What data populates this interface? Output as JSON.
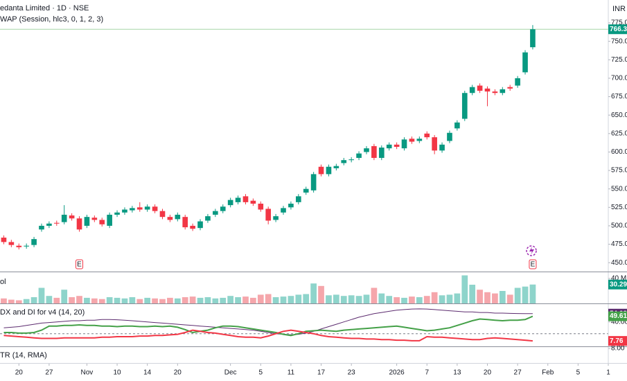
{
  "chart_data": [
    {
      "type": "candlestick",
      "title": "edanta Limited · 1D · NSE",
      "subtitle": "WAP (Session, hlc3, 0, 1, 2, 3)",
      "unit": "INR",
      "up_color": "#089981",
      "down_color": "#f23645",
      "xlim": [
        -0.5,
        80
      ],
      "ylim": [
        438,
        806
      ],
      "yticks": [
        {
          "value": 450,
          "label": "450.00"
        },
        {
          "value": 475,
          "label": "475.00"
        },
        {
          "value": 500,
          "label": "500.00"
        },
        {
          "value": 525,
          "label": "525.00"
        },
        {
          "value": 550,
          "label": "550.00"
        },
        {
          "value": 575,
          "label": "575.00"
        },
        {
          "value": 600,
          "label": "600.00"
        },
        {
          "value": 625,
          "label": "625.00"
        },
        {
          "value": 650,
          "label": "650.00"
        },
        {
          "value": 675,
          "label": "675.00"
        },
        {
          "value": 700,
          "label": "700.00"
        },
        {
          "value": 725,
          "label": "725.00"
        },
        {
          "value": 750,
          "label": "750.00"
        },
        {
          "value": 775,
          "label": "775.00"
        }
      ],
      "xticks": [
        {
          "value": 2,
          "label": "20"
        },
        {
          "value": 6,
          "label": "27"
        },
        {
          "value": 11,
          "label": "Nov"
        },
        {
          "value": 15,
          "label": "10"
        },
        {
          "value": 19,
          "label": "14"
        },
        {
          "value": 23,
          "label": "20"
        },
        {
          "value": 30,
          "label": "Dec"
        },
        {
          "value": 34,
          "label": "5"
        },
        {
          "value": 38,
          "label": "11"
        },
        {
          "value": 42,
          "label": "17"
        },
        {
          "value": 46,
          "label": "23"
        },
        {
          "value": 52,
          "label": "2026"
        },
        {
          "value": 56,
          "label": "7"
        },
        {
          "value": 60,
          "label": "13"
        },
        {
          "value": 64,
          "label": "20"
        },
        {
          "value": 68,
          "label": "27"
        },
        {
          "value": 72,
          "label": "Feb"
        },
        {
          "value": 76,
          "label": "5"
        },
        {
          "value": 80,
          "label": "1"
        }
      ],
      "annotations": [
        {
          "x": 10,
          "text": "E"
        },
        {
          "x": 70,
          "text": "E"
        }
      ],
      "open": [
        484,
        478,
        473,
        472,
        474,
        495,
        500,
        504,
        505,
        514,
        510,
        500,
        511,
        508,
        500,
        515,
        518,
        521,
        525,
        522,
        526,
        520,
        512,
        509,
        512,
        500,
        497,
        507,
        515,
        520,
        528,
        532,
        540,
        534,
        530,
        523,
        508,
        518,
        525,
        532,
        545,
        548,
        580,
        570,
        578,
        585,
        589,
        592,
        600,
        608,
        592,
        605,
        610,
        605,
        618,
        615,
        625,
        620,
        602,
        615,
        632,
        645,
        680,
        690,
        686,
        682,
        680,
        688,
        690,
        708,
        742
      ],
      "high": [
        487,
        481,
        476,
        476,
        485,
        503,
        506,
        507,
        528,
        517,
        513,
        515,
        514,
        511,
        518,
        521,
        525,
        527,
        532,
        529,
        529,
        523,
        515,
        518,
        515,
        503,
        509,
        516,
        523,
        529,
        538,
        541,
        543,
        537,
        533,
        526,
        516,
        527,
        533,
        543,
        553,
        573,
        583,
        583,
        584,
        592,
        593,
        601,
        608,
        611,
        609,
        613,
        613,
        620,
        621,
        621,
        628,
        623,
        613,
        629,
        643,
        683,
        691,
        693,
        689,
        685,
        688,
        691,
        703,
        738,
        772
      ],
      "low": [
        475,
        471,
        468,
        469,
        471,
        492,
        497,
        500,
        502,
        507,
        492,
        497,
        505,
        499,
        497,
        512,
        515,
        518,
        519,
        519,
        517,
        509,
        505,
        506,
        495,
        493,
        494,
        504,
        512,
        517,
        525,
        529,
        529,
        527,
        519,
        502,
        505,
        515,
        522,
        529,
        542,
        545,
        567,
        567,
        575,
        582,
        586,
        589,
        597,
        589,
        589,
        602,
        604,
        602,
        611,
        612,
        617,
        597,
        599,
        612,
        629,
        642,
        677,
        680,
        662,
        677,
        677,
        683,
        687,
        705,
        739
      ],
      "close": [
        478,
        474,
        471,
        473,
        482,
        500,
        503,
        503,
        515,
        510,
        495,
        512,
        508,
        502,
        515,
        518,
        522,
        524,
        522,
        526,
        520,
        512,
        508,
        515,
        498,
        496,
        506,
        513,
        520,
        526,
        535,
        538,
        532,
        530,
        522,
        507,
        513,
        524,
        530,
        540,
        550,
        570,
        570,
        580,
        581,
        589,
        590,
        598,
        605,
        592,
        606,
        610,
        607,
        617,
        614,
        618,
        620,
        602,
        610,
        626,
        640,
        680,
        688,
        683,
        682,
        680,
        685,
        686,
        700,
        735,
        766.35
      ]
    },
    {
      "type": "bar",
      "title": "ol",
      "up_color": "#8ed4cb",
      "down_color": "#f5a6ab",
      "badge_color": "#089981",
      "ylim": [
        0,
        50
      ],
      "yticks": [
        {
          "value": 40,
          "label": "40 M"
        }
      ],
      "values": [
        8,
        6,
        5,
        7,
        10,
        25,
        12,
        9,
        22,
        10,
        12,
        9,
        8,
        7,
        10,
        9,
        8,
        10,
        7,
        9,
        8,
        7,
        9,
        8,
        10,
        11,
        9,
        10,
        8,
        9,
        12,
        10,
        11,
        9,
        14,
        15,
        10,
        11,
        12,
        14,
        15,
        32,
        28,
        13,
        14,
        12,
        13,
        12,
        14,
        25,
        16,
        12,
        10,
        9,
        11,
        10,
        12,
        18,
        13,
        14,
        16,
        45,
        30,
        22,
        18,
        16,
        20,
        14,
        25,
        27,
        30.29
      ],
      "value_labels": [
        null,
        null,
        null,
        null,
        null,
        null,
        null,
        null,
        null,
        null,
        null,
        null,
        null,
        null,
        null,
        null,
        null,
        null,
        null,
        null,
        null,
        null,
        null,
        null,
        null,
        null,
        null,
        null,
        null,
        null,
        null,
        null,
        null,
        null,
        null,
        null,
        null,
        null,
        null,
        null,
        null,
        null,
        null,
        null,
        null,
        null,
        null,
        null,
        null,
        null,
        null,
        null,
        null,
        null,
        null,
        null,
        null,
        null,
        null,
        null,
        null,
        null,
        null,
        null,
        null,
        null,
        null,
        null,
        null,
        null,
        "30.29M"
      ]
    },
    {
      "type": "line",
      "title": "DX and DI for v4 (14, 20)",
      "ylim": [
        -1.5,
        70.3
      ],
      "yticks": [
        {
          "value": 40,
          "label": "40.00"
        }
      ],
      "hline": 20,
      "series": [
        {
          "color": "#5b2a6e",
          "values": [
            30,
            31,
            32,
            34,
            36,
            38,
            39,
            40,
            41,
            42,
            42,
            43,
            43,
            44,
            44,
            43.7,
            43,
            42,
            41,
            40,
            39,
            38,
            37,
            36,
            35,
            34,
            33,
            32,
            31,
            30,
            29,
            28,
            27,
            26,
            24,
            22,
            20,
            19,
            18.2,
            19,
            21,
            24,
            28,
            32,
            36,
            40,
            44,
            48,
            51,
            54,
            56,
            58,
            60,
            61,
            62,
            62.2,
            62,
            61,
            60,
            59,
            58,
            57,
            57,
            56,
            56,
            55,
            55,
            54.5,
            54.3,
            54.1,
            54.09
          ]
        },
        {
          "color": "#43a047",
          "values": [
            22,
            22,
            21,
            21,
            22,
            26,
            33,
            33,
            34,
            34,
            35,
            34,
            34,
            33,
            33,
            32,
            33,
            33,
            32,
            32,
            33,
            32,
            33,
            31,
            27,
            22,
            24,
            26,
            30,
            33,
            33,
            32,
            30,
            28,
            26,
            24,
            22,
            19,
            17,
            20,
            24,
            25,
            26,
            25,
            24,
            26,
            27,
            28,
            29,
            30,
            31,
            32,
            33,
            31,
            29,
            27,
            25,
            26,
            28,
            30,
            34,
            38,
            42,
            45,
            44,
            43,
            42,
            43,
            43,
            44,
            49.61
          ]
        },
        {
          "color": "#f23645",
          "values": [
            17,
            16,
            15,
            14,
            13,
            12,
            12,
            12,
            13,
            13,
            13,
            13,
            13,
            14,
            14,
            15,
            15,
            15,
            16,
            16,
            17,
            17,
            18,
            19,
            22,
            26,
            24,
            22,
            21,
            19,
            17,
            15,
            14,
            14,
            13,
            16,
            20,
            24,
            26,
            24,
            22,
            20,
            17,
            15,
            14,
            13,
            12,
            12,
            11,
            11,
            10,
            10,
            9,
            9,
            8,
            8,
            15,
            14,
            14,
            13,
            12,
            11,
            10,
            10,
            12,
            13,
            12,
            11,
            10,
            9,
            7.76
          ]
        }
      ]
    },
    {
      "type": "line",
      "title": "TR (14, RMA)",
      "ylim": [
        4,
        8.4
      ],
      "yticks": [
        {
          "value": 8,
          "label": "8.00"
        }
      ]
    }
  ]
}
